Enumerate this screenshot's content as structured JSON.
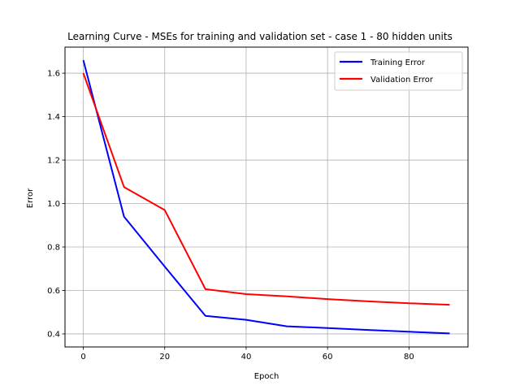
{
  "chart_data": {
    "type": "line",
    "title": "Learning Curve - MSEs for training and validation set - case 1 - 80 hidden units",
    "xlabel": "Epoch",
    "ylabel": "Error",
    "x": [
      0,
      10,
      20,
      30,
      40,
      50,
      60,
      70,
      80,
      90
    ],
    "xlim": [
      -4.5,
      94.5
    ],
    "ylim": [
      0.34,
      1.72
    ],
    "xticks": [
      0,
      20,
      40,
      60,
      80
    ],
    "yticks": [
      0.4,
      0.6,
      0.8,
      1.0,
      1.2,
      1.4,
      1.6
    ],
    "xtick_labels": [
      "0",
      "20",
      "40",
      "60",
      "80"
    ],
    "ytick_labels": [
      "0.4",
      "0.6",
      "0.8",
      "1.0",
      "1.2",
      "1.4",
      "1.6"
    ],
    "grid": true,
    "legend_position": "top-right",
    "series": [
      {
        "name": "Training Error",
        "color": "#0000ff",
        "values": [
          1.66,
          0.94,
          0.71,
          0.483,
          0.465,
          0.435,
          0.427,
          0.418,
          0.41,
          0.402
        ]
      },
      {
        "name": "Validation Error",
        "color": "#ff0000",
        "values": [
          1.6,
          1.076,
          0.97,
          0.606,
          0.583,
          0.573,
          0.56,
          0.55,
          0.541,
          0.534
        ]
      }
    ]
  }
}
